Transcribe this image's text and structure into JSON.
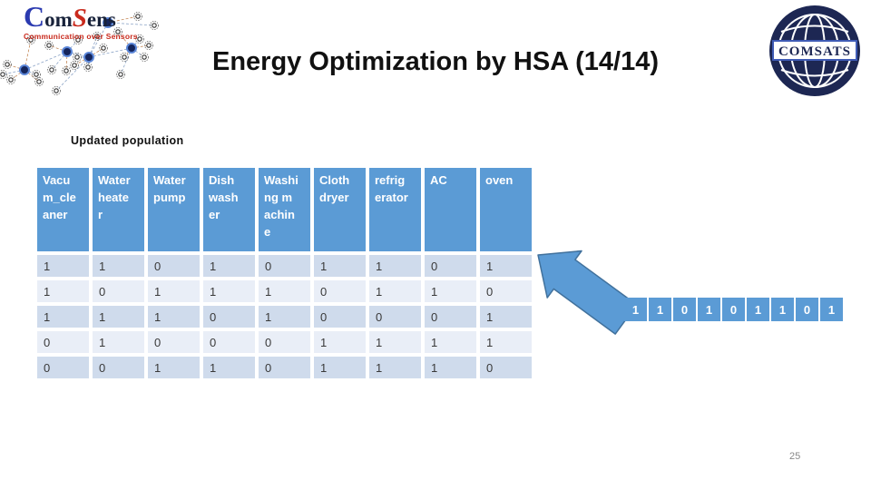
{
  "slide": {
    "title": "Energy Optimization by HSA (14/14)",
    "section_label": "Updated  population",
    "page_number": "25"
  },
  "logos": {
    "comsens": {
      "c": "C",
      "om": "om",
      "s": "S",
      "ens": "ens",
      "tagline": "Communication over Sensors"
    },
    "comsats": {
      "text": "COMSATS"
    }
  },
  "table": {
    "columns": [
      "Vacum_cleaner",
      "Water heater",
      "Water pump",
      "Dish washer",
      "Washing machine",
      "Cloth dryer",
      "refrigerator",
      "AC",
      "oven"
    ],
    "rows": [
      [
        "1",
        "1",
        "0",
        "1",
        "0",
        "1",
        "1",
        "0",
        "1"
      ],
      [
        "1",
        "0",
        "1",
        "1",
        "1",
        "0",
        "1",
        "1",
        "0"
      ],
      [
        "1",
        "1",
        "1",
        "0",
        "1",
        "0",
        "0",
        "0",
        "1"
      ],
      [
        "0",
        "1",
        "0",
        "0",
        "0",
        "1",
        "1",
        "1",
        "1"
      ],
      [
        "0",
        "0",
        "1",
        "1",
        "0",
        "1",
        "1",
        "1",
        "0"
      ]
    ]
  },
  "highlight_row": {
    "values": [
      "1",
      "1",
      "0",
      "1",
      "0",
      "1",
      "1",
      "0",
      "1"
    ]
  },
  "colors": {
    "header_blue": "#5b9bd5",
    "row_odd": "#cfdbec",
    "row_even": "#e9eef7",
    "arrow_fill": "#5b9bd5",
    "arrow_stroke": "#41719c",
    "comsats_navy": "#1d2753",
    "comsens_red": "#c92a1d",
    "comsens_blue": "#2b3ab0"
  }
}
